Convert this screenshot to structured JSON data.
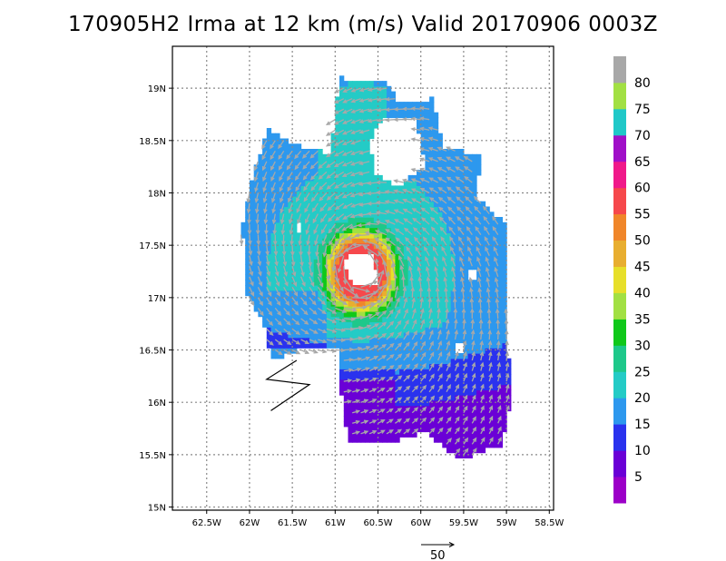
{
  "title": "170905H2 Irma at 12 km (m/s) Valid 20170906 0003Z",
  "chart_data": {
    "type": "heatmap",
    "title": "170905H2 Irma at 12 km (m/s) Valid 20170906 0003Z",
    "variable": "wind speed",
    "units": "m/s",
    "xlim": [
      -62.9,
      -58.45
    ],
    "ylim": [
      14.97,
      19.4
    ],
    "x_ticks": [
      {
        "value": -62.5,
        "label": "62.5W"
      },
      {
        "value": -62.0,
        "label": "62W"
      },
      {
        "value": -61.5,
        "label": "61.5W"
      },
      {
        "value": -61.0,
        "label": "61W"
      },
      {
        "value": -60.5,
        "label": "60.5W"
      },
      {
        "value": -60.0,
        "label": "60W"
      },
      {
        "value": -59.5,
        "label": "59.5W"
      },
      {
        "value": -59.0,
        "label": "59W"
      },
      {
        "value": -58.5,
        "label": "58.5W"
      }
    ],
    "y_ticks": [
      {
        "value": 15.0,
        "label": "15N"
      },
      {
        "value": 15.5,
        "label": "15.5N"
      },
      {
        "value": 16.0,
        "label": "16N"
      },
      {
        "value": 16.5,
        "label": "16.5N"
      },
      {
        "value": 17.0,
        "label": "17N"
      },
      {
        "value": 17.5,
        "label": "17.5N"
      },
      {
        "value": 18.0,
        "label": "18N"
      },
      {
        "value": 18.5,
        "label": "18.5N"
      },
      {
        "value": 19.0,
        "label": "19N"
      }
    ],
    "grid": true,
    "colorbar": {
      "placement": "right",
      "levels": [
        {
          "lo": 0,
          "hi": 5,
          "color": "#9c00c8"
        },
        {
          "lo": 5,
          "hi": 10,
          "color": "#6a00d6"
        },
        {
          "lo": 10,
          "hi": 15,
          "color": "#2a32ee"
        },
        {
          "lo": 15,
          "hi": 20,
          "color": "#2d98ee"
        },
        {
          "lo": 20,
          "hi": 25,
          "color": "#24cbc6"
        },
        {
          "lo": 25,
          "hi": 30,
          "color": "#1ec88a"
        },
        {
          "lo": 30,
          "hi": 35,
          "color": "#10c81a"
        },
        {
          "lo": 35,
          "hi": 40,
          "color": "#a2e043"
        },
        {
          "lo": 40,
          "hi": 45,
          "color": "#e7df2a"
        },
        {
          "lo": 45,
          "hi": 50,
          "color": "#e8ae30"
        },
        {
          "lo": 50,
          "hi": 55,
          "color": "#f0862a"
        },
        {
          "lo": 55,
          "hi": 60,
          "color": "#f6484c"
        },
        {
          "lo": 60,
          "hi": 65,
          "color": "#f0198a"
        },
        {
          "lo": 65,
          "hi": 70,
          "color": "#a010c8"
        },
        {
          "lo": 70,
          "hi": 75,
          "color": "#20c8c8"
        },
        {
          "lo": 75,
          "hi": 80,
          "color": "#a2e043"
        },
        {
          "lo": 80,
          "hi": 85,
          "color": "#a8a8a8"
        }
      ],
      "labels": [
        "5",
        "10",
        "15",
        "20",
        "25",
        "30",
        "35",
        "40",
        "45",
        "50",
        "55",
        "60",
        "65",
        "70",
        "75",
        "80"
      ]
    },
    "storm_center": {
      "lon": -60.7,
      "lat": 17.25
    },
    "max_wind_ms": 60,
    "vector_reference": {
      "label": "50",
      "value": 50,
      "units": "m/s"
    },
    "track_marks": [
      {
        "lon": -61.45,
        "lat": 16.4
      },
      {
        "lon": -61.8,
        "lat": 16.22
      },
      {
        "lon": -61.3,
        "lat": 16.17
      },
      {
        "lon": -61.75,
        "lat": 15.92
      }
    ]
  }
}
